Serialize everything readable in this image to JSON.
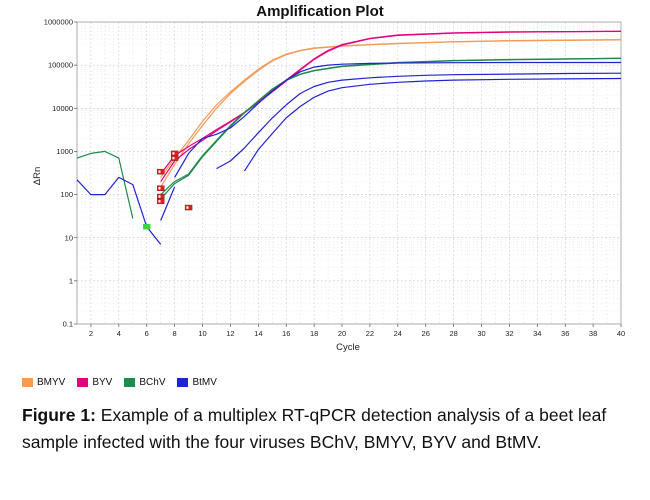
{
  "chart_data": {
    "type": "line",
    "title": "Amplification Plot",
    "xlabel": "Cycle",
    "ylabel": "ΔRn",
    "xlim": [
      1,
      40
    ],
    "ylim": [
      0.1,
      1000000
    ],
    "yscale": "log",
    "grid": true,
    "xticks": [
      "2",
      "4",
      "6",
      "8",
      "10",
      "12",
      "14",
      "16",
      "18",
      "20",
      "22",
      "24",
      "26",
      "28",
      "30",
      "32",
      "34",
      "36",
      "38",
      "40"
    ],
    "yticks": [
      "0.1",
      "1",
      "10",
      "100",
      "1000",
      "10000",
      "100000",
      "1000000"
    ],
    "series": [
      {
        "name": "BMYV",
        "color": "#f59b58",
        "curves": [
          {
            "x": [
              7,
              8,
              9,
              10,
              11,
              12,
              13,
              14,
              15,
              16,
              17,
              18,
              20,
              24,
              28,
              32,
              36,
              40
            ],
            "y": [
              250,
              700,
              1800,
              5000,
              12000,
              24000,
              45000,
              80000,
              130000,
              180000,
              220000,
              250000,
              280000,
              320000,
              350000,
              370000,
              380000,
              390000
            ]
          },
          {
            "x": [
              7,
              8,
              9,
              10,
              11,
              12,
              13,
              14,
              15,
              16,
              17,
              18,
              20,
              24,
              28,
              32,
              36,
              40
            ],
            "y": [
              150,
              500,
              1500,
              4000,
              10000,
              22000,
              42000,
              75000,
              125000,
              175000,
              215000,
              245000,
              275000,
              315000,
              345000,
              365000,
              375000,
              385000
            ]
          }
        ]
      },
      {
        "name": "BYV",
        "color": "#e4007f",
        "curves": [
          {
            "x": [
              7,
              8,
              9,
              10,
              11,
              12,
              13,
              14,
              15,
              16,
              17,
              18,
              19,
              20,
              22,
              24,
              28,
              32,
              36,
              40
            ],
            "y": [
              300,
              800,
              1300,
              2000,
              3200,
              5000,
              8000,
              14000,
              25000,
              45000,
              80000,
              140000,
              220000,
              300000,
              420000,
              500000,
              560000,
              590000,
              600000,
              610000
            ]
          },
          {
            "x": [
              7,
              8,
              9,
              10,
              11,
              12,
              13,
              14,
              15,
              16,
              17,
              18,
              19,
              20,
              22,
              24,
              28,
              32,
              36,
              40
            ],
            "y": [
              200,
              600,
              1100,
              1800,
              3000,
              4800,
              7800,
              13500,
              24000,
              43000,
              77000,
              135000,
              210000,
              290000,
              410000,
              490000,
              550000,
              580000,
              595000,
              605000
            ]
          }
        ]
      },
      {
        "name": "BChV",
        "color": "#1f8a4c",
        "curves": [
          {
            "x": [
              1,
              2,
              3,
              4,
              5
            ],
            "y": [
              700,
              900,
              1000,
              700,
              28
            ]
          },
          {
            "x": [
              7,
              8,
              9,
              10,
              11,
              12,
              13,
              14,
              15,
              16,
              17,
              18,
              20,
              24,
              28,
              32,
              36,
              40
            ],
            "y": [
              100,
              200,
              300,
              800,
              1800,
              4000,
              8000,
              15000,
              28000,
              45000,
              62000,
              75000,
              95000,
              115000,
              128000,
              135000,
              140000,
              145000
            ]
          },
          {
            "x": [
              7,
              8,
              9,
              10,
              11,
              12,
              13,
              14,
              15,
              16,
              17,
              18,
              20,
              24,
              28,
              32,
              36,
              40
            ],
            "y": [
              80,
              180,
              280,
              750,
              1700,
              3800,
              7800,
              14500,
              27000,
              44000,
              61000,
              74000,
              93000,
              113000,
              126000,
              133000,
              138000,
              143000
            ]
          }
        ]
      },
      {
        "name": "BtMV",
        "color": "#1f23d6",
        "curves": [
          {
            "x": [
              1,
              2,
              3,
              4,
              5,
              6,
              7
            ],
            "y": [
              220,
              100,
              100,
              250,
              170,
              18,
              7
            ]
          },
          {
            "x": [
              7,
              8
            ],
            "y": [
              25,
              150
            ]
          },
          {
            "x": [
              8,
              9,
              10,
              11,
              12,
              13,
              14,
              15,
              16,
              17,
              18,
              19,
              20,
              22,
              24,
              28,
              32,
              36,
              40
            ],
            "y": [
              250,
              900,
              2000,
              2500,
              3500,
              6500,
              13000,
              25000,
              45000,
              70000,
              90000,
              100000,
              105000,
              110000,
              112000,
              114000,
              115000,
              115000,
              115000
            ]
          },
          {
            "x": [
              11,
              12,
              13,
              14,
              15,
              16,
              17,
              18,
              19,
              20,
              22,
              24,
              26,
              28,
              32,
              36,
              40
            ],
            "y": [
              400,
              600,
              1200,
              2700,
              6000,
              12000,
              22000,
              32000,
              40000,
              45000,
              51000,
              55000,
              58000,
              60000,
              62000,
              64000,
              65000
            ]
          },
          {
            "x": [
              13,
              14,
              15,
              16,
              17,
              18,
              19,
              20,
              22,
              24,
              26,
              28,
              32,
              36,
              40
            ],
            "y": [
              350,
              1100,
              2600,
              6000,
              11000,
              18000,
              25000,
              30000,
              36000,
              40000,
              43000,
              45000,
              47000,
              48000,
              49000
            ]
          }
        ]
      }
    ],
    "markers": [
      {
        "x": 8,
        "y": 900,
        "color": "#e02020"
      },
      {
        "x": 8,
        "y": 700,
        "color": "#e02020"
      },
      {
        "x": 7,
        "y": 340,
        "color": "#e02020"
      },
      {
        "x": 7,
        "y": 140,
        "color": "#e02020"
      },
      {
        "x": 7,
        "y": 90,
        "color": "#e02020"
      },
      {
        "x": 7,
        "y": 70,
        "color": "#e02020"
      },
      {
        "x": 9,
        "y": 50,
        "color": "#e02020"
      },
      {
        "x": 6,
        "y": 18,
        "color": "#3ad43a"
      }
    ]
  },
  "legend": [
    {
      "label": "BMYV",
      "color": "#f59b58"
    },
    {
      "label": "BYV",
      "color": "#e4007f"
    },
    {
      "label": "BChV",
      "color": "#1f8a4c"
    },
    {
      "label": "BtMV",
      "color": "#1f23d6"
    }
  ],
  "caption": {
    "lead": "Figure 1:",
    "text": " Example of a multiplex RT-qPCR detection analysis of a beet leaf sample infected with the four viruses BChV, BMYV, BYV and BtMV."
  }
}
